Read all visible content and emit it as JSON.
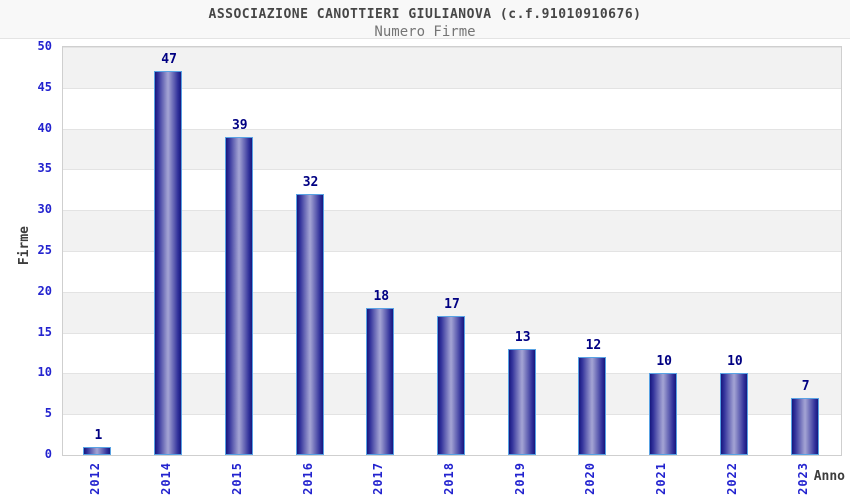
{
  "chart_data": {
    "type": "bar",
    "title": "ASSOCIAZIONE CANOTTIERI GIULIANOVA (c.f.91010910676)",
    "subtitle": "Numero Firme",
    "categories": [
      "2012",
      "2014",
      "2015",
      "2016",
      "2017",
      "2018",
      "2019",
      "2020",
      "2021",
      "2022",
      "2023"
    ],
    "values": [
      1,
      47,
      39,
      32,
      18,
      17,
      13,
      12,
      10,
      10,
      7
    ],
    "xlabel": "Anno",
    "ylabel": "Firme",
    "ylim": [
      0,
      50
    ],
    "ytick_step": 5,
    "yticks": [
      0,
      5,
      10,
      15,
      20,
      25,
      30,
      35,
      40,
      45,
      50
    ],
    "grid": "alternating horizontal bands, gridline every 5 units",
    "legend": "none",
    "bar_value_labels_shown": true,
    "x_tick_rotation_degrees": 90
  },
  "colors": {
    "title": "#464646",
    "subtitle": "#757575",
    "tick_label_blue": "#2323cf",
    "value_label_navy": "#000082",
    "axis_title": "#3d3d3d",
    "bar_edge": "#17177e",
    "bar_mid": "#32329b",
    "bar_center": "#a0a0d2",
    "bar_border": "#58a2e4",
    "band_gray": "#f2f2f2",
    "band_white": "#ffffff",
    "plot_border": "#cfcfcf",
    "gridline": "#e3e3e3",
    "header_bg": "#f8f8f8",
    "header_border": "#e4e4e4",
    "background": "#ffffff"
  }
}
